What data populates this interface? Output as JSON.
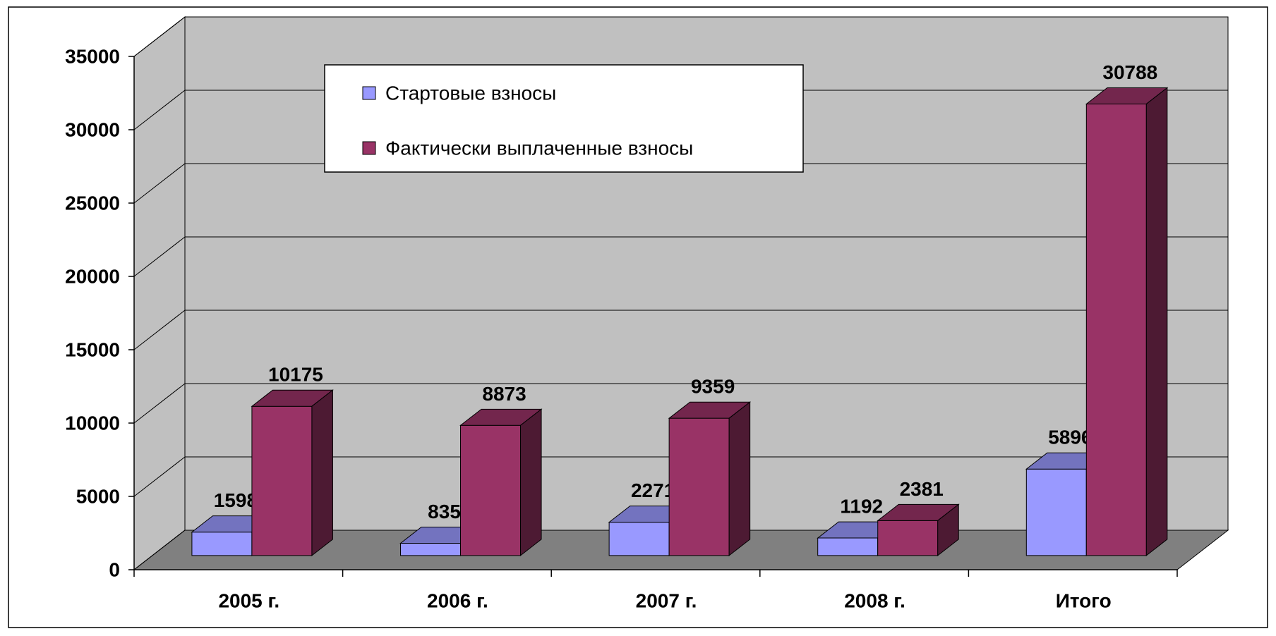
{
  "chart_data": {
    "type": "bar3d",
    "categories": [
      "2005 г.",
      "2006 г.",
      "2007 г.",
      "2008 г.",
      "Итого"
    ],
    "series": [
      {
        "name": "Стартовые взносы",
        "color": "#9999ff",
        "values": [
          1598,
          835,
          2271,
          1192,
          5896
        ]
      },
      {
        "name": "Фактически выплаченные взносы",
        "color": "#993366",
        "values": [
          10175,
          8873,
          9359,
          2381,
          30788
        ]
      }
    ],
    "ylim": [
      0,
      35000
    ],
    "yticks": [
      0,
      5000,
      10000,
      15000,
      20000,
      25000,
      30000,
      35000
    ],
    "grid": true,
    "legend": "top"
  }
}
